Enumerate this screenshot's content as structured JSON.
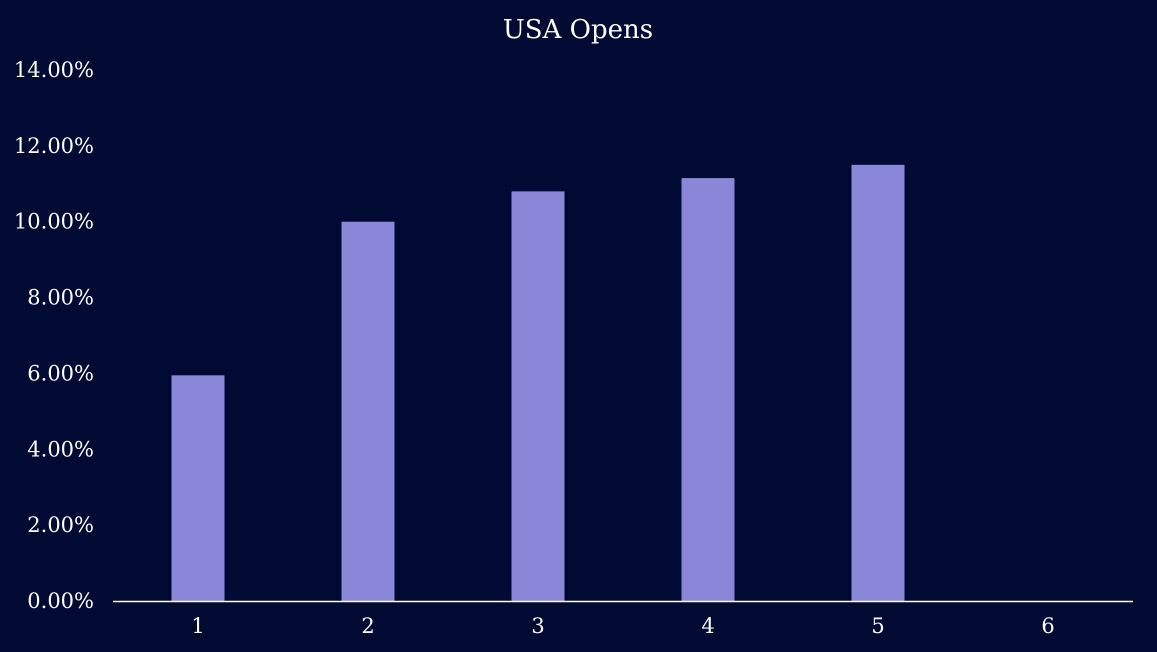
{
  "chart_data": {
    "type": "bar",
    "title": "USA Opens",
    "xlabel": "",
    "ylabel": "",
    "categories": [
      "1",
      "2",
      "3",
      "4",
      "5",
      "6"
    ],
    "values": [
      5.95,
      10.0,
      10.8,
      11.15,
      11.5,
      0
    ],
    "ylim": [
      0,
      14
    ],
    "yticks": [
      "0.00%",
      "2.00%",
      "4.00%",
      "6.00%",
      "8.00%",
      "10.00%",
      "12.00%",
      "14.00%"
    ],
    "grid": false,
    "legend": "none",
    "colors": {
      "background": "#000a33",
      "bar": "#8a86d8",
      "axis": "#ffffff",
      "text": "#ffffff"
    }
  }
}
